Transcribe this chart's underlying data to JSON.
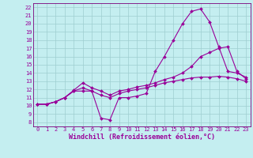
{
  "xlabel": "Windchill (Refroidissement éolien,°C)",
  "bg_color": "#c4eef0",
  "grid_color": "#9ecdd0",
  "line_color": "#990099",
  "spine_color": "#7a007a",
  "xlim": [
    -0.5,
    23.5
  ],
  "ylim": [
    7.5,
    22.5
  ],
  "xticks": [
    0,
    1,
    2,
    3,
    4,
    5,
    6,
    7,
    8,
    9,
    10,
    11,
    12,
    13,
    14,
    15,
    16,
    17,
    18,
    19,
    20,
    21,
    22,
    23
  ],
  "yticks": [
    8,
    9,
    10,
    11,
    12,
    13,
    14,
    15,
    16,
    17,
    18,
    19,
    20,
    21,
    22
  ],
  "series1_x": [
    0,
    1,
    2,
    3,
    4,
    5,
    6,
    7,
    8,
    9,
    10,
    11,
    12,
    13,
    14,
    15,
    16,
    17,
    18,
    19,
    20,
    21,
    22,
    23
  ],
  "series1_y": [
    10.2,
    10.2,
    10.5,
    11.0,
    11.8,
    11.8,
    11.8,
    8.5,
    8.3,
    11.0,
    11.0,
    11.2,
    11.5,
    14.2,
    16.0,
    18.0,
    20.0,
    21.5,
    21.8,
    20.2,
    17.2,
    14.2,
    14.0,
    13.5
  ],
  "series2_x": [
    0,
    1,
    2,
    3,
    4,
    5,
    6,
    7,
    8,
    9,
    10,
    11,
    12,
    13,
    14,
    15,
    16,
    17,
    18,
    19,
    20,
    21,
    22,
    23
  ],
  "series2_y": [
    10.2,
    10.2,
    10.5,
    11.0,
    11.9,
    12.8,
    12.2,
    11.8,
    11.3,
    11.8,
    12.0,
    12.3,
    12.5,
    12.8,
    13.2,
    13.5,
    14.0,
    14.8,
    16.0,
    16.5,
    17.0,
    17.2,
    14.2,
    13.3
  ],
  "series3_x": [
    0,
    1,
    2,
    3,
    4,
    5,
    6,
    7,
    8,
    9,
    10,
    11,
    12,
    13,
    14,
    15,
    16,
    17,
    18,
    19,
    20,
    21,
    22,
    23
  ],
  "series3_y": [
    10.2,
    10.2,
    10.5,
    11.0,
    11.8,
    12.2,
    11.8,
    11.3,
    11.0,
    11.5,
    11.8,
    12.0,
    12.2,
    12.5,
    12.8,
    13.0,
    13.2,
    13.4,
    13.5,
    13.5,
    13.6,
    13.5,
    13.3,
    13.0
  ],
  "marker": "D",
  "markersize": 2.0,
  "linewidth": 0.8,
  "tick_fontsize": 5.0,
  "xlabel_fontsize": 6.0
}
